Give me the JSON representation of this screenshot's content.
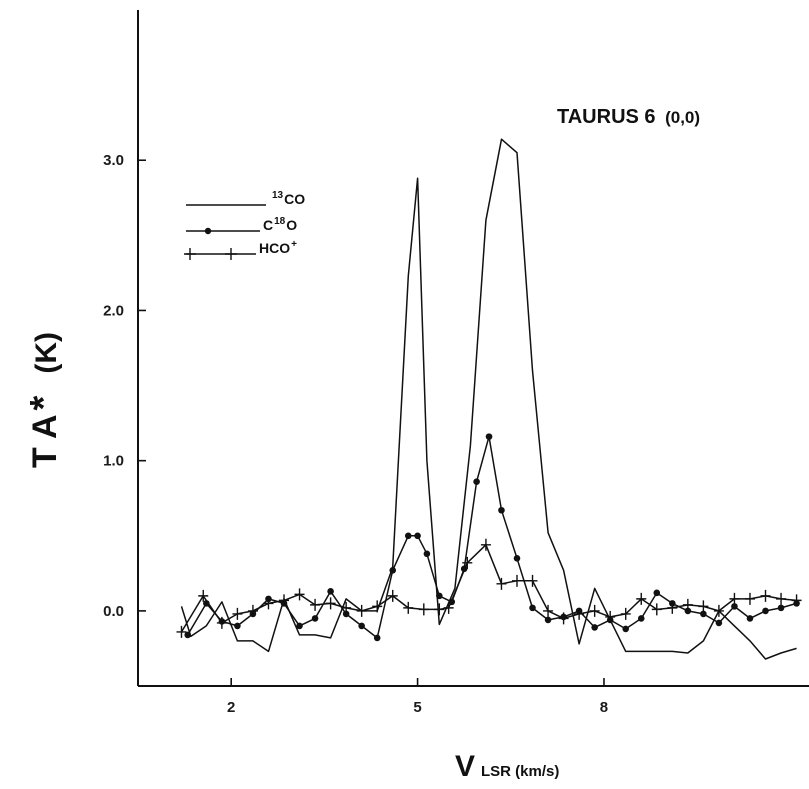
{
  "chart_data": {
    "type": "line",
    "title": "TAURUS 6",
    "title_suffix": "(0,0)",
    "xlabel_main": "V",
    "xlabel_sub": "LSR (km/s)",
    "ylabel": "T A",
    "ylabel_star": "*",
    "ylabel_unit": "(K)",
    "xlim": [
      0.5,
      11.3
    ],
    "ylim": [
      -0.5,
      4.0
    ],
    "xticks": [
      2,
      5,
      8
    ],
    "yticks": [
      0.0,
      1.0,
      2.0,
      3.0
    ],
    "ytick_labels": [
      "0.0",
      "1.0",
      "2.0",
      "3.0"
    ],
    "legend_position": "top-left",
    "series": [
      {
        "name": "13CO",
        "legend_sup": "13",
        "legend_main": "CO",
        "marker": "none",
        "x": [
          1.2,
          1.35,
          1.6,
          1.85,
          2.1,
          2.35,
          2.6,
          2.85,
          3.1,
          3.35,
          3.6,
          3.85,
          4.1,
          4.35,
          4.6,
          4.85,
          5.0,
          5.15,
          5.35,
          5.6,
          5.85,
          6.1,
          6.35,
          6.6,
          6.85,
          7.1,
          7.35,
          7.6,
          7.85,
          8.1,
          8.35,
          8.6,
          8.85,
          9.1,
          9.35,
          9.6,
          9.85,
          10.1,
          10.35,
          10.6,
          10.85,
          11.1
        ],
        "y": [
          0.03,
          -0.17,
          -0.1,
          0.06,
          -0.2,
          -0.2,
          -0.27,
          0.08,
          -0.16,
          -0.16,
          -0.18,
          0.08,
          0.0,
          0.0,
          0.29,
          2.23,
          2.88,
          1.0,
          -0.09,
          0.15,
          1.1,
          2.6,
          3.14,
          3.05,
          1.6,
          0.52,
          0.27,
          -0.22,
          0.15,
          -0.06,
          -0.27,
          -0.27,
          -0.27,
          -0.27,
          -0.28,
          -0.2,
          0.0,
          -0.1,
          -0.2,
          -0.32,
          -0.28,
          -0.25
        ]
      },
      {
        "name": "C18O",
        "legend_main": "C",
        "legend_sup": "18",
        "legend_tail": "O",
        "marker": "circle",
        "x": [
          1.3,
          1.6,
          1.85,
          2.1,
          2.35,
          2.6,
          2.85,
          3.1,
          3.35,
          3.6,
          3.85,
          4.1,
          4.35,
          4.6,
          4.85,
          5.0,
          5.15,
          5.35,
          5.55,
          5.75,
          5.95,
          6.15,
          6.35,
          6.6,
          6.85,
          7.1,
          7.35,
          7.6,
          7.85,
          8.1,
          8.35,
          8.6,
          8.85,
          9.1,
          9.35,
          9.6,
          9.85,
          10.1,
          10.35,
          10.6,
          10.85,
          11.1
        ],
        "y": [
          -0.16,
          0.05,
          -0.07,
          -0.1,
          -0.02,
          0.08,
          0.05,
          -0.1,
          -0.05,
          0.13,
          -0.02,
          -0.1,
          -0.18,
          0.27,
          0.5,
          0.5,
          0.38,
          0.1,
          0.06,
          0.28,
          0.86,
          1.16,
          0.67,
          0.35,
          0.02,
          -0.06,
          -0.04,
          0.0,
          -0.11,
          -0.06,
          -0.12,
          -0.05,
          0.12,
          0.05,
          0.0,
          -0.02,
          -0.08,
          0.03,
          -0.05,
          0.0,
          0.02,
          0.05
        ]
      },
      {
        "name": "HCO+",
        "legend_main": "HCO",
        "legend_sup": "+",
        "marker": "plus",
        "x": [
          1.2,
          1.55,
          1.85,
          2.1,
          2.35,
          2.6,
          2.85,
          3.1,
          3.35,
          3.6,
          3.85,
          4.1,
          4.35,
          4.6,
          4.85,
          5.1,
          5.35,
          5.5,
          5.8,
          6.1,
          6.35,
          6.6,
          6.85,
          7.1,
          7.35,
          7.6,
          7.85,
          8.1,
          8.35,
          8.6,
          8.85,
          9.1,
          9.35,
          9.6,
          9.85,
          10.1,
          10.35,
          10.6,
          10.85,
          11.1
        ],
        "y": [
          -0.14,
          0.1,
          -0.08,
          -0.02,
          0.0,
          0.05,
          0.07,
          0.11,
          0.04,
          0.05,
          0.02,
          0.0,
          0.03,
          0.1,
          0.02,
          0.01,
          0.01,
          0.02,
          0.32,
          0.44,
          0.18,
          0.2,
          0.2,
          0.0,
          -0.05,
          -0.02,
          0.0,
          -0.04,
          -0.02,
          0.08,
          0.01,
          0.02,
          0.04,
          0.03,
          0.0,
          0.08,
          0.08,
          0.1,
          0.08,
          0.07
        ]
      }
    ]
  }
}
